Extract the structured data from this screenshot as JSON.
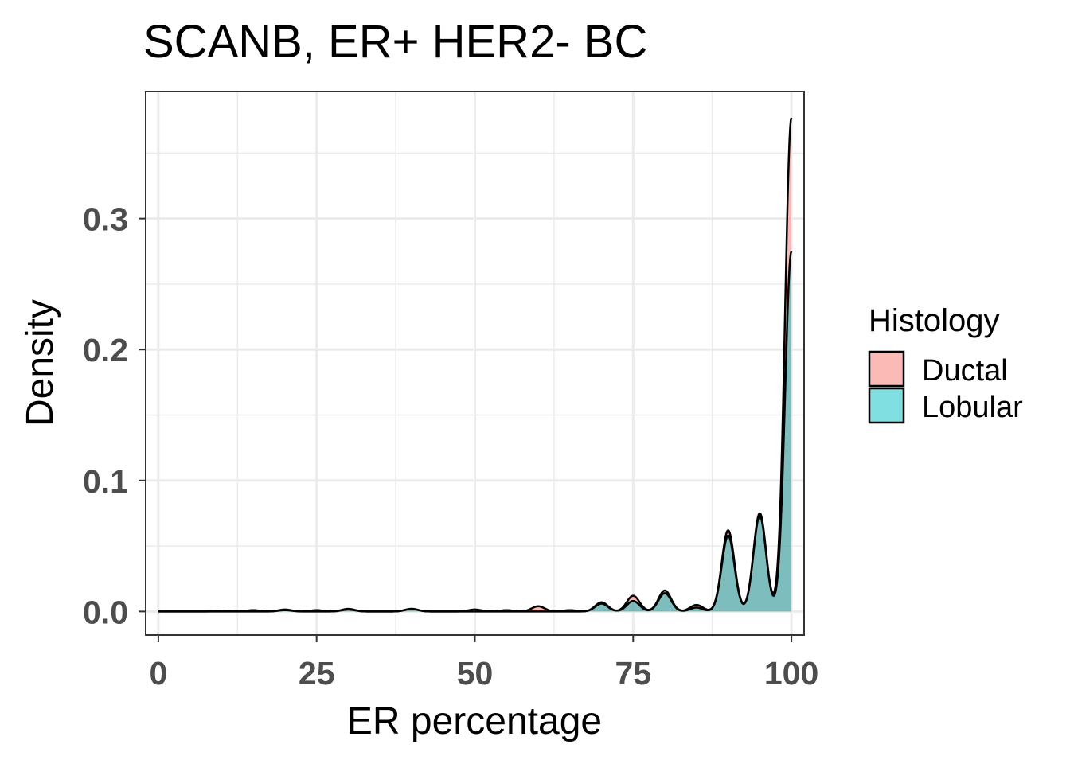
{
  "chart_data": {
    "type": "area",
    "title": "SCANB, ER+ HER2- BC",
    "xlabel": "ER percentage",
    "ylabel": "Density",
    "xlim": [
      -2,
      102
    ],
    "ylim": [
      -0.018,
      0.397
    ],
    "x_ticks": [
      0,
      25,
      50,
      75,
      100
    ],
    "x_tick_labels": [
      "0",
      "25",
      "50",
      "75",
      "100"
    ],
    "y_ticks": [
      0.0,
      0.1,
      0.2,
      0.3
    ],
    "y_tick_labels": [
      "0.0",
      "0.1",
      "0.2",
      "0.3"
    ],
    "grid": true,
    "legend_position": "right",
    "legend_title": "Histology",
    "series": [
      {
        "name": "Ductal",
        "color": "#F8766D",
        "peaks": [
          {
            "x": 10,
            "y": 0.0005
          },
          {
            "x": 15,
            "y": 0.001
          },
          {
            "x": 20,
            "y": 0.0015
          },
          {
            "x": 25,
            "y": 0.001
          },
          {
            "x": 30,
            "y": 0.0015
          },
          {
            "x": 40,
            "y": 0.002
          },
          {
            "x": 50,
            "y": 0.0015
          },
          {
            "x": 55,
            "y": 0.001
          },
          {
            "x": 60,
            "y": 0.004
          },
          {
            "x": 65,
            "y": 0.001
          },
          {
            "x": 70,
            "y": 0.006
          },
          {
            "x": 75,
            "y": 0.012
          },
          {
            "x": 80,
            "y": 0.016
          },
          {
            "x": 85,
            "y": 0.005
          },
          {
            "x": 90,
            "y": 0.062
          },
          {
            "x": 95,
            "y": 0.075
          },
          {
            "x": 100,
            "y": 0.377
          }
        ]
      },
      {
        "name": "Lobular",
        "color": "#00BFC4",
        "peaks": [
          {
            "x": 20,
            "y": 0.001
          },
          {
            "x": 30,
            "y": 0.002
          },
          {
            "x": 40,
            "y": 0.002
          },
          {
            "x": 70,
            "y": 0.007
          },
          {
            "x": 75,
            "y": 0.008
          },
          {
            "x": 80,
            "y": 0.014
          },
          {
            "x": 85,
            "y": 0.003
          },
          {
            "x": 90,
            "y": 0.058
          },
          {
            "x": 95,
            "y": 0.073
          },
          {
            "x": 100,
            "y": 0.275
          }
        ]
      }
    ]
  }
}
